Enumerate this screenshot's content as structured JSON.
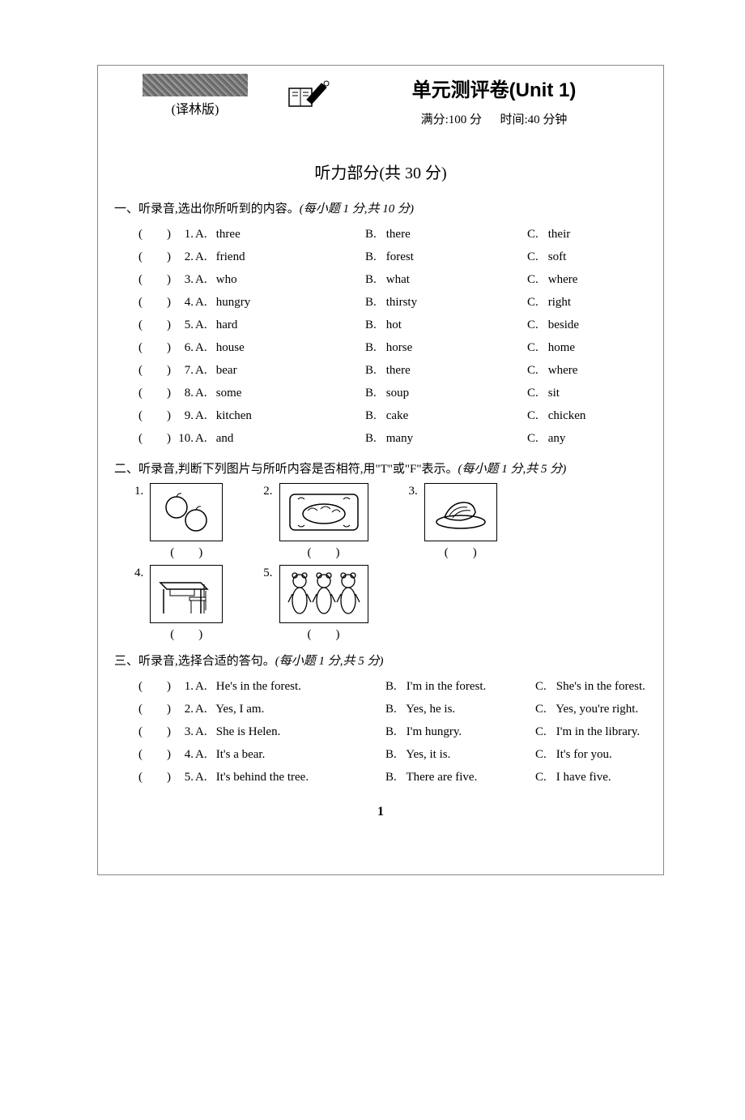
{
  "header": {
    "version": "(译林版)",
    "title": "单元测评卷(Unit 1)",
    "score_label": "满分:100 分",
    "time_label": "时间:40 分钟"
  },
  "section_listening": "听力部分(共 30 分)",
  "part1": {
    "title": "一、听录音,选出你所听到的内容。",
    "points": "(每小题 1 分,共 10 分)",
    "questions": [
      {
        "n": "1.",
        "a": "three",
        "b": "there",
        "c": "their"
      },
      {
        "n": "2.",
        "a": "friend",
        "b": "forest",
        "c": "soft"
      },
      {
        "n": "3.",
        "a": "who",
        "b": "what",
        "c": "where"
      },
      {
        "n": "4.",
        "a": "hungry",
        "b": "thirsty",
        "c": "right"
      },
      {
        "n": "5.",
        "a": "hard",
        "b": "hot",
        "c": "beside"
      },
      {
        "n": "6.",
        "a": "house",
        "b": "horse",
        "c": "home"
      },
      {
        "n": "7.",
        "a": "bear",
        "b": "there",
        "c": "where"
      },
      {
        "n": "8.",
        "a": "some",
        "b": "soup",
        "c": "sit"
      },
      {
        "n": "9.",
        "a": "kitchen",
        "b": "cake",
        "c": "chicken"
      },
      {
        "n": "10.",
        "a": "and",
        "b": "many",
        "c": "any"
      }
    ]
  },
  "part2": {
    "title": "二、听录音,判断下列图片与所听内容是否相符,用\"T\"或\"F\"表示。",
    "points": "(每小题 1 分,共 5 分)",
    "items": [
      {
        "n": "1.",
        "alt": "two apples"
      },
      {
        "n": "2.",
        "alt": "soup bowl on mat"
      },
      {
        "n": "3.",
        "alt": "bananas on plate"
      },
      {
        "n": "4.",
        "alt": "desk and chair"
      },
      {
        "n": "5.",
        "alt": "three bears"
      }
    ]
  },
  "part3": {
    "title": "三、听录音,选择合适的答句。",
    "points": "(每小题 1 分,共 5 分)",
    "questions": [
      {
        "n": "1.",
        "a": "He's in the forest.",
        "b": "I'm in the forest.",
        "c": "She's in the forest."
      },
      {
        "n": "2.",
        "a": "Yes, I am.",
        "b": "Yes, he is.",
        "c": "Yes, you're right."
      },
      {
        "n": "3.",
        "a": "She is Helen.",
        "b": "I'm hungry.",
        "c": "I'm in the library."
      },
      {
        "n": "4.",
        "a": "It's a bear.",
        "b": "Yes, it is.",
        "c": "It's for you."
      },
      {
        "n": "5.",
        "a": "It's behind the tree.",
        "b": "There are five.",
        "c": "I have five."
      }
    ]
  },
  "labels": {
    "A": "A.",
    "B": "B.",
    "C": "C.",
    "paren": "(　　)"
  },
  "page_number": "1"
}
